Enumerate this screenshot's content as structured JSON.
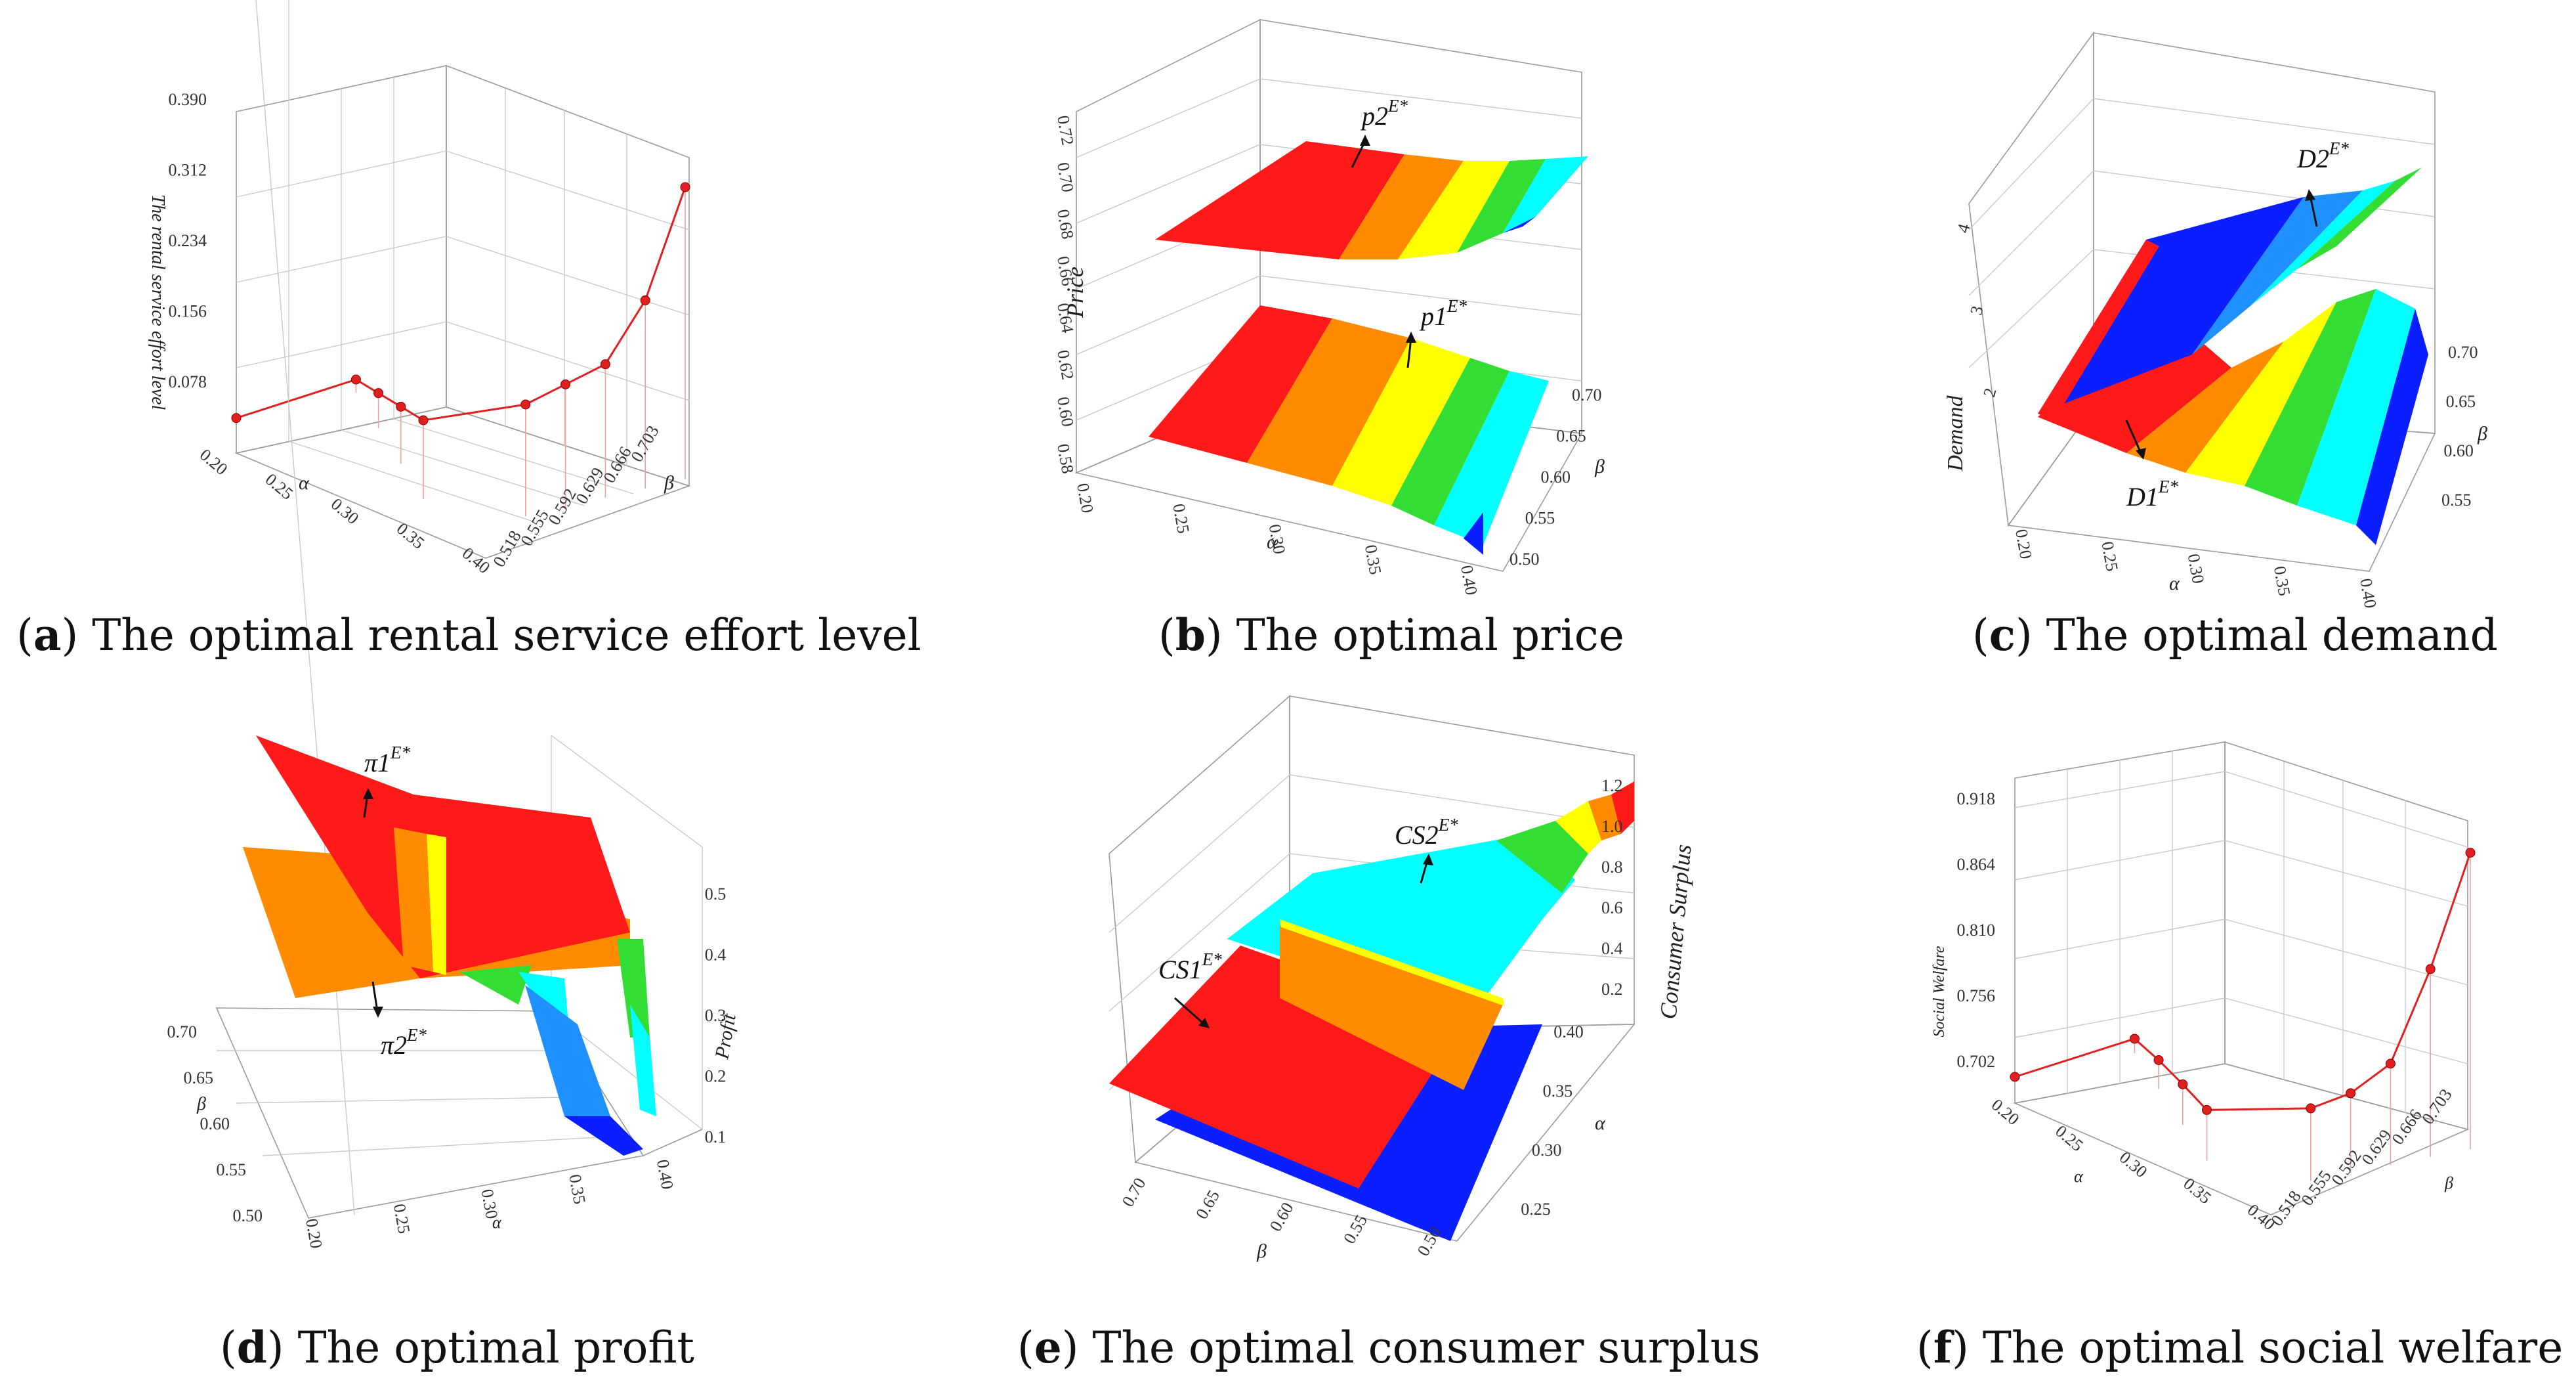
{
  "figure": {
    "panels": [
      {
        "key": "a",
        "letter": "a",
        "caption": " The optimal rental service effort level"
      },
      {
        "key": "b",
        "letter": "b",
        "caption": " The optimal price"
      },
      {
        "key": "c",
        "letter": "c",
        "caption": " The optimal demand"
      },
      {
        "key": "d",
        "letter": "d",
        "caption": " The optimal profit"
      },
      {
        "key": "e",
        "letter": "e",
        "caption": " The optimal consumer surplus"
      },
      {
        "key": "f",
        "letter": "f",
        "caption": " The optimal social welfare"
      }
    ]
  },
  "colors": {
    "red": "#ff1a1a",
    "orange": "#ff8c00",
    "yellow": "#ffff00",
    "green": "#33dd33",
    "cyan": "#00ffff",
    "sky": "#1e90ff",
    "blue": "#0a1eff",
    "marker": "#e02020"
  },
  "chart_data": [
    {
      "id": "a",
      "type": "scatter3d",
      "title": "The optimal rental service effort level",
      "zlabel": "The rental service effort level",
      "xlabel": "α",
      "ylabel": "β",
      "z_ticks": [
        "0.078",
        "0.156",
        "0.234",
        "0.312",
        "0.390"
      ],
      "x_ticks": [
        "0.20",
        "0.25",
        "0.30",
        "0.35",
        "0.40"
      ],
      "y_ticks": [
        "0.518",
        "0.555",
        "0.592",
        "0.629",
        "0.666",
        "0.703"
      ],
      "x_labels": [
        "0.20",
        "0.25",
        "0.30",
        "0.35",
        "0.40"
      ],
      "points": [
        {
          "alpha": 0.4,
          "beta": 0.703,
          "z": 0.345
        },
        {
          "alpha": 0.4,
          "beta": 0.666,
          "z": 0.25
        },
        {
          "alpha": 0.4,
          "beta": 0.629,
          "z": 0.2
        },
        {
          "alpha": 0.4,
          "beta": 0.592,
          "z": 0.19
        },
        {
          "alpha": 0.4,
          "beta": 0.555,
          "z": 0.18
        },
        {
          "alpha": 0.35,
          "beta": 0.518,
          "z": 0.15
        },
        {
          "alpha": 0.3,
          "beta": 0.555,
          "z": 0.13
        },
        {
          "alpha": 0.25,
          "beta": 0.592,
          "z": 0.11
        },
        {
          "alpha": 0.2,
          "beta": 0.629,
          "z": 0.09
        },
        {
          "alpha": 0.2,
          "beta": 0.518,
          "z": 0.08
        }
      ]
    },
    {
      "id": "b",
      "type": "surface3d",
      "title": "The optimal price",
      "zlabel": "Price",
      "xlabel": "α",
      "ylabel": "β",
      "z_ticks": [
        "0.58",
        "0.60",
        "0.62",
        "0.64",
        "0.66",
        "0.68",
        "0.70",
        "0.72"
      ],
      "x_ticks": [
        "0.20",
        "0.25",
        "0.30",
        "0.35",
        "0.40"
      ],
      "y_ticks": [
        "0.50",
        "0.55",
        "0.60",
        "0.65",
        "0.70"
      ],
      "series": [
        {
          "name": "p2",
          "sup": "E*"
        },
        {
          "name": "p1",
          "sup": "E*"
        }
      ]
    },
    {
      "id": "c",
      "type": "surface3d",
      "title": "The optimal demand",
      "zlabel": "Demand",
      "xlabel": "α",
      "ylabel": "β",
      "z_ticks": [
        "2",
        "3",
        "4"
      ],
      "x_ticks": [
        "0.20",
        "0.25",
        "0.30",
        "0.35",
        "0.40"
      ],
      "y_ticks": [
        "0.55",
        "0.60",
        "0.65",
        "0.70"
      ],
      "series": [
        {
          "name": "D2",
          "sup": "E*"
        },
        {
          "name": "D1",
          "sup": "E*"
        }
      ]
    },
    {
      "id": "d",
      "type": "surface3d",
      "title": "The optimal profit",
      "zlabel": "Profit",
      "xlabel": "α",
      "ylabel": "β",
      "z_ticks": [
        "0.1",
        "0.2",
        "0.3",
        "0.4",
        "0.5"
      ],
      "x_ticks": [
        "0.20",
        "0.25",
        "0.30",
        "0.35",
        "0.40"
      ],
      "y_ticks": [
        "0.50",
        "0.55",
        "0.60",
        "0.65",
        "0.70"
      ],
      "series": [
        {
          "name": "π1",
          "sup": "E*"
        },
        {
          "name": "π2",
          "sup": "E*"
        }
      ]
    },
    {
      "id": "e",
      "type": "surface3d",
      "title": "The optimal consumer surplus",
      "zlabel": "Consumer Surplus",
      "xlabel": "α",
      "ylabel": "β",
      "z_ticks": [
        "0.2",
        "0.4",
        "0.6",
        "0.8",
        "1.0",
        "1.2"
      ],
      "x_ticks": [
        "0.25",
        "0.30",
        "0.35",
        "0.40"
      ],
      "y_ticks": [
        "0.70",
        "0.65",
        "0.60",
        "0.55",
        "0.50"
      ],
      "series": [
        {
          "name": "CS2",
          "sup": "E*"
        },
        {
          "name": "CS1",
          "sup": "E*"
        }
      ]
    },
    {
      "id": "f",
      "type": "scatter3d",
      "title": "The optimal social welfare",
      "zlabel": "Social Welfare",
      "xlabel": "α",
      "ylabel": "β",
      "z_ticks": [
        "0.702",
        "0.756",
        "0.810",
        "0.864",
        "0.918"
      ],
      "x_ticks": [
        "0.20",
        "0.25",
        "0.30",
        "0.35",
        "0.40"
      ],
      "y_ticks": [
        "0.518",
        "0.555",
        "0.592",
        "0.629",
        "0.666",
        "0.703"
      ],
      "points": [
        {
          "alpha": 0.4,
          "beta": 0.703,
          "z": 0.905
        },
        {
          "alpha": 0.4,
          "beta": 0.666,
          "z": 0.83
        },
        {
          "alpha": 0.4,
          "beta": 0.629,
          "z": 0.77
        },
        {
          "alpha": 0.4,
          "beta": 0.592,
          "z": 0.755
        },
        {
          "alpha": 0.4,
          "beta": 0.555,
          "z": 0.75
        },
        {
          "alpha": 0.35,
          "beta": 0.518,
          "z": 0.735
        },
        {
          "alpha": 0.3,
          "beta": 0.555,
          "z": 0.728
        },
        {
          "alpha": 0.25,
          "beta": 0.592,
          "z": 0.72
        },
        {
          "alpha": 0.2,
          "beta": 0.629,
          "z": 0.71
        },
        {
          "alpha": 0.2,
          "beta": 0.518,
          "z": 0.7
        }
      ]
    }
  ]
}
